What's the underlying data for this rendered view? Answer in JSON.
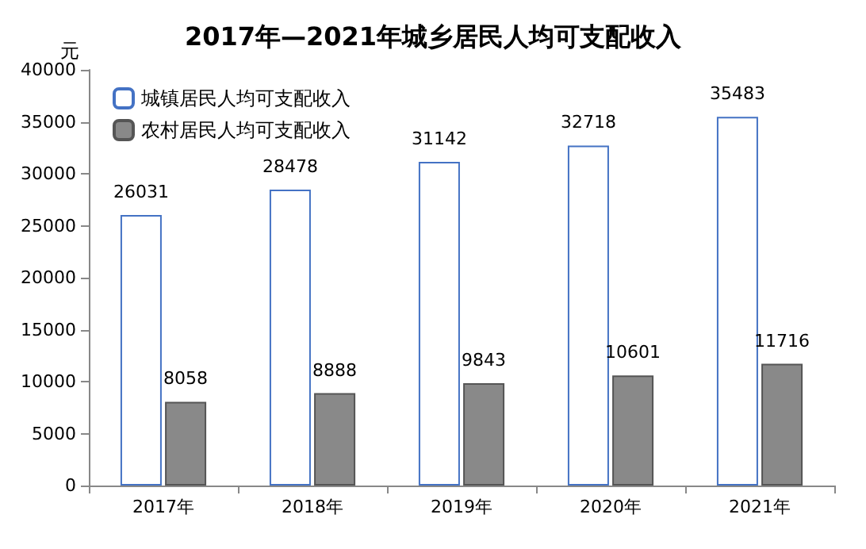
{
  "chart_data": {
    "type": "bar",
    "title": "2017年—2021年城乡居民人均可支配收入",
    "ylabel": "元",
    "categories": [
      "2017年",
      "2018年",
      "2019年",
      "2020年",
      "2021年"
    ],
    "series": [
      {
        "name": "城镇居民人均可支配收入",
        "color": "#ffffff",
        "values": [
          26031,
          28478,
          31142,
          32718,
          35483
        ]
      },
      {
        "name": "农村居民人均可支配收入",
        "color": "#898989",
        "values": [
          8058,
          8888,
          9843,
          10601,
          11716
        ]
      }
    ],
    "ylim": [
      0,
      40000
    ],
    "yticks": [
      0,
      5000,
      10000,
      15000,
      20000,
      25000,
      30000,
      35000,
      40000
    ],
    "data_labels": true,
    "legend": "top left",
    "grid": false
  }
}
